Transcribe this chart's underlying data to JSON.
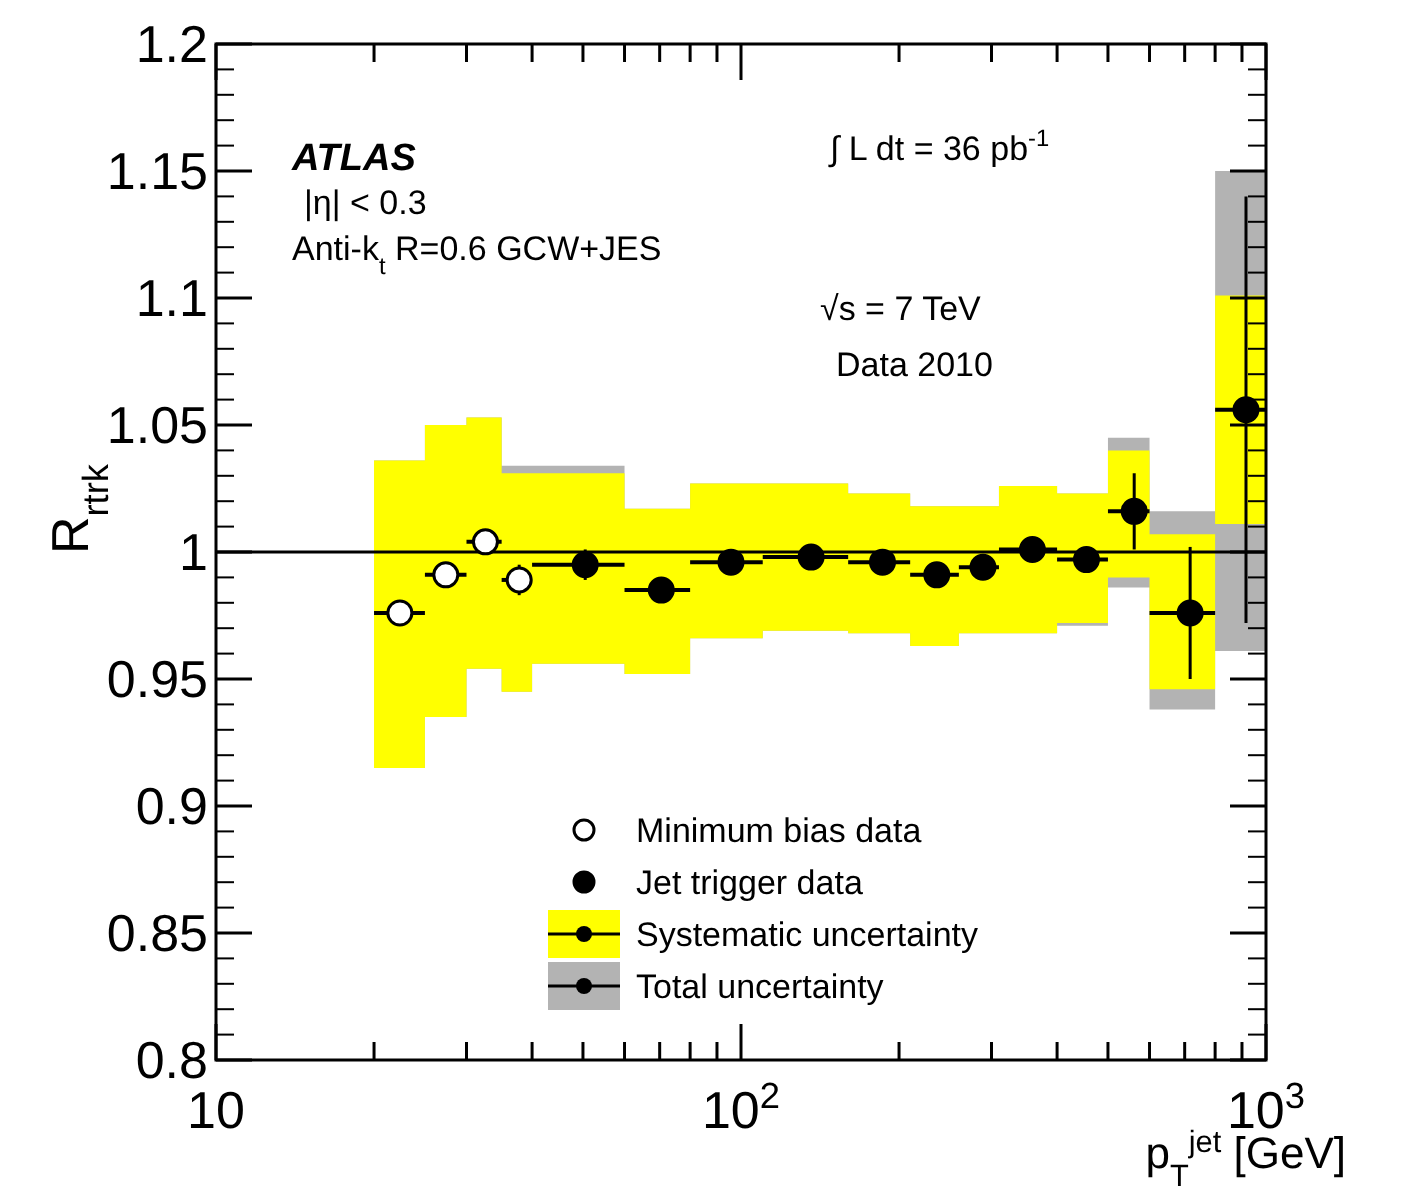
{
  "chart_data": {
    "type": "scatter",
    "xlabel": "p$_{T}$$^{jet}$ [GeV]",
    "ylabel": "R$_{rtrk}$",
    "log": "x",
    "xlim": [
      10,
      1000
    ],
    "ylim": [
      0.8,
      1.2
    ],
    "xticks": [
      {
        "value": 10,
        "label": "10"
      },
      {
        "value": 20,
        "label": null
      },
      {
        "value": 30,
        "label": null
      },
      {
        "value": 40,
        "label": null
      },
      {
        "value": 50,
        "label": null
      },
      {
        "value": 60,
        "label": null
      },
      {
        "value": 70,
        "label": null
      },
      {
        "value": 80,
        "label": null
      },
      {
        "value": 90,
        "label": null
      },
      {
        "value": 100,
        "label": "10$^{2}$"
      },
      {
        "value": 200,
        "label": null
      },
      {
        "value": 300,
        "label": null
      },
      {
        "value": 400,
        "label": null
      },
      {
        "value": 500,
        "label": null
      },
      {
        "value": 600,
        "label": null
      },
      {
        "value": 700,
        "label": null
      },
      {
        "value": 800,
        "label": null
      },
      {
        "value": 900,
        "label": null
      },
      {
        "value": 1000,
        "label": "10$^{3}$"
      }
    ],
    "yticks": [
      0.8,
      0.85,
      0.9,
      0.95,
      1,
      1.05,
      1.1,
      1.15,
      1.2
    ],
    "grid": false,
    "legend": "bottom",
    "marker": "circle",
    "ref_lines": [
      {
        "axis": "y",
        "value": 1,
        "color": "#000000",
        "line_style": "solid"
      }
    ],
    "series": [
      {
        "name": "Minimum bias data",
        "type": "scatter",
        "color": "#ffffff",
        "x": [
          22.4,
          27.4,
          32.6,
          37.8
        ],
        "values": [
          0.976,
          0.991,
          1.004,
          0.989
        ],
        "errors": [
          0.003,
          0.004,
          0.004,
          0.006
        ],
        "xerrors": [
          [
            20,
            25
          ],
          [
            25,
            30
          ],
          [
            30,
            35
          ],
          [
            35,
            40
          ]
        ]
      },
      {
        "name": "Jet trigger data",
        "type": "scatter",
        "color": "#000000",
        "x": [
          50.5,
          70.5,
          95.7,
          136,
          186,
          236,
          289,
          359,
          455,
          561,
          717,
          916
        ],
        "values": [
          0.995,
          0.985,
          0.996,
          0.998,
          0.996,
          0.991,
          0.994,
          1.001,
          0.997,
          1.016,
          0.976,
          1.056
        ],
        "errors": [
          0.006,
          0.003,
          0.003,
          0.003,
          0.003,
          0.003,
          0.003,
          0.003,
          0.005,
          0.015,
          0.026,
          0.084
        ],
        "xerrors": [
          [
            40,
            60
          ],
          [
            60,
            80
          ],
          [
            80,
            110
          ],
          [
            110,
            160
          ],
          [
            160,
            210
          ],
          [
            210,
            260
          ],
          [
            260,
            310
          ],
          [
            310,
            400
          ],
          [
            400,
            500
          ],
          [
            500,
            600
          ],
          [
            600,
            800
          ],
          [
            800,
            1000
          ]
        ]
      },
      {
        "name": "Systematic uncertainty",
        "type": "area",
        "color": "#ffff00",
        "x": [
          20,
          25,
          25,
          30,
          30,
          35,
          35,
          40,
          40,
          60,
          60,
          80,
          80,
          110,
          110,
          160,
          160,
          210,
          210,
          260,
          260,
          310,
          310,
          400,
          400,
          500,
          500,
          600,
          600,
          800,
          800,
          1000
        ],
        "values": [
          null,
          null,
          null,
          null,
          null,
          null,
          null,
          null,
          null,
          null,
          null,
          null,
          null,
          null,
          null,
          null,
          null,
          null,
          null,
          null,
          null,
          null,
          null,
          null,
          null,
          null,
          null,
          null,
          null,
          null,
          null,
          null
        ],
        "lower": [
          0.915,
          0.915,
          0.935,
          0.935,
          0.954,
          0.954,
          0.945,
          0.945,
          0.956,
          0.956,
          0.952,
          0.952,
          0.966,
          0.966,
          0.969,
          0.969,
          0.968,
          0.968,
          0.963,
          0.963,
          0.968,
          0.968,
          0.968,
          0.968,
          0.972,
          0.972,
          0.99,
          0.99,
          0.946,
          0.946,
          1.011,
          1.011
        ],
        "upper": [
          1.036,
          1.036,
          1.05,
          1.05,
          1.053,
          1.053,
          1.031,
          1.031,
          1.031,
          1.031,
          1.017,
          1.017,
          1.027,
          1.027,
          1.027,
          1.027,
          1.023,
          1.023,
          1.018,
          1.018,
          1.018,
          1.018,
          1.026,
          1.026,
          1.023,
          1.023,
          1.04,
          1.04,
          1.007,
          1.007,
          1.101,
          1.101
        ]
      },
      {
        "name": "Total uncertainty",
        "type": "area",
        "color": "#b3b3b3",
        "x": [
          20,
          25,
          25,
          30,
          30,
          35,
          35,
          40,
          40,
          60,
          60,
          80,
          80,
          110,
          110,
          160,
          160,
          210,
          210,
          260,
          260,
          310,
          310,
          400,
          400,
          500,
          500,
          600,
          600,
          800,
          800,
          1000
        ],
        "values": [
          null,
          null,
          null,
          null,
          null,
          null,
          null,
          null,
          null,
          null,
          null,
          null,
          null,
          null,
          null,
          null,
          null,
          null,
          null,
          null,
          null,
          null,
          null,
          null,
          null,
          null,
          null,
          null,
          null,
          null,
          null,
          null
        ],
        "lower": [
          0.915,
          0.915,
          0.935,
          0.935,
          0.954,
          0.954,
          0.945,
          0.945,
          0.956,
          0.956,
          0.952,
          0.952,
          0.966,
          0.966,
          0.969,
          0.969,
          0.968,
          0.968,
          0.963,
          0.963,
          0.968,
          0.968,
          0.968,
          0.968,
          0.971,
          0.971,
          0.986,
          0.986,
          0.938,
          0.938,
          0.961,
          0.961
        ],
        "upper": [
          1.036,
          1.036,
          1.05,
          1.05,
          1.053,
          1.053,
          1.034,
          1.034,
          1.034,
          1.034,
          1.017,
          1.017,
          1.027,
          1.027,
          1.027,
          1.027,
          1.023,
          1.023,
          1.018,
          1.018,
          1.018,
          1.018,
          1.026,
          1.026,
          1.023,
          1.023,
          1.045,
          1.045,
          1.016,
          1.016,
          1.15,
          1.15
        ]
      }
    ],
    "annotations": [
      "ATLAS",
      "|η| < 0.3",
      "Anti-k$_{t}$ R=0.6 GCW+JES",
      "∫ L dt = 36 pb$^{-1}$",
      "√s = 7 TeV",
      "Data 2010"
    ]
  }
}
